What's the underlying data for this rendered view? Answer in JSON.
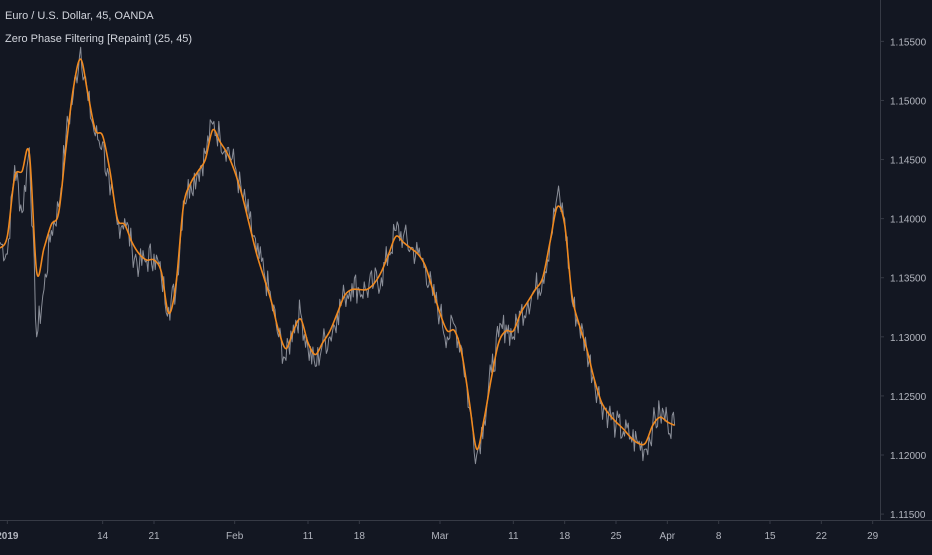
{
  "header": {
    "symbol_line": "Euro / U.S. Dollar, 45, OANDA",
    "indicator_line": "Zero Phase Filtering [Repaint] (25, 45)"
  },
  "colors": {
    "background": "#131722",
    "price": "#8a8e98",
    "filter": "#f0891f",
    "axis_text": "#b2b5be",
    "axis_line": "#363a45"
  },
  "chart_data": {
    "type": "line",
    "x_type": "date",
    "ylim": [
      1.1145,
      1.1585
    ],
    "xlim": [
      "2018-12-31",
      "2019-04-30"
    ],
    "grid": false,
    "y_ticks": [
      1.155,
      1.15,
      1.145,
      1.14,
      1.135,
      1.13,
      1.125,
      1.12,
      1.115
    ],
    "y_tick_labels": [
      "1.15500",
      "1.15000",
      "1.14500",
      "1.14000",
      "1.13500",
      "1.13000",
      "1.12500",
      "1.12000",
      "1.11500"
    ],
    "x_ticks": [
      {
        "date": "2019-01-01",
        "label": "2019",
        "bold": true
      },
      {
        "date": "2019-01-14",
        "label": "14"
      },
      {
        "date": "2019-01-21",
        "label": "21"
      },
      {
        "date": "2019-02-01",
        "label": "Feb"
      },
      {
        "date": "2019-02-11",
        "label": "11"
      },
      {
        "date": "2019-02-18",
        "label": "18"
      },
      {
        "date": "2019-03-01",
        "label": "Mar"
      },
      {
        "date": "2019-03-11",
        "label": "11"
      },
      {
        "date": "2019-03-18",
        "label": "18"
      },
      {
        "date": "2019-03-25",
        "label": "25"
      },
      {
        "date": "2019-04-01",
        "label": "Apr"
      },
      {
        "date": "2019-04-08",
        "label": "8"
      },
      {
        "date": "2019-04-15",
        "label": "15"
      },
      {
        "date": "2019-04-22",
        "label": "22"
      },
      {
        "date": "2019-04-29",
        "label": "29"
      }
    ],
    "series": [
      {
        "name": "Euro / U.S. Dollar",
        "points": [
          [
            "2018-12-31",
            1.138
          ],
          [
            "2019-01-01",
            1.137
          ],
          [
            "2019-01-02",
            1.1445
          ],
          [
            "2019-01-03",
            1.1405
          ],
          [
            "2019-01-04",
            1.146
          ],
          [
            "2019-01-05",
            1.13
          ],
          [
            "2019-01-06",
            1.134
          ],
          [
            "2019-01-07",
            1.139
          ],
          [
            "2019-01-08",
            1.141
          ],
          [
            "2019-01-09",
            1.147
          ],
          [
            "2019-01-10",
            1.1505
          ],
          [
            "2019-01-11",
            1.1545
          ],
          [
            "2019-01-12",
            1.15
          ],
          [
            "2019-01-13",
            1.147
          ],
          [
            "2019-01-14",
            1.1465
          ],
          [
            "2019-01-15",
            1.142
          ],
          [
            "2019-01-16",
            1.1395
          ],
          [
            "2019-01-17",
            1.14
          ],
          [
            "2019-01-18",
            1.1375
          ],
          [
            "2019-01-19",
            1.136
          ],
          [
            "2019-01-20",
            1.1365
          ],
          [
            "2019-01-21",
            1.137
          ],
          [
            "2019-01-22",
            1.135
          ],
          [
            "2019-01-23",
            1.1325
          ],
          [
            "2019-01-24",
            1.134
          ],
          [
            "2019-01-25",
            1.1415
          ],
          [
            "2019-01-26",
            1.143
          ],
          [
            "2019-01-27",
            1.144
          ],
          [
            "2019-01-28",
            1.1455
          ],
          [
            "2019-01-29",
            1.148
          ],
          [
            "2019-01-30",
            1.147
          ],
          [
            "2019-01-31",
            1.146
          ],
          [
            "2019-02-01",
            1.1445
          ],
          [
            "2019-02-02",
            1.142
          ],
          [
            "2019-02-03",
            1.14
          ],
          [
            "2019-02-04",
            1.137
          ],
          [
            "2019-02-05",
            1.1355
          ],
          [
            "2019-02-06",
            1.133
          ],
          [
            "2019-02-07",
            1.13
          ],
          [
            "2019-02-08",
            1.128
          ],
          [
            "2019-02-09",
            1.131
          ],
          [
            "2019-02-10",
            1.132
          ],
          [
            "2019-02-11",
            1.129
          ],
          [
            "2019-02-12",
            1.1275
          ],
          [
            "2019-02-13",
            1.1295
          ],
          [
            "2019-02-14",
            1.13
          ],
          [
            "2019-02-15",
            1.132
          ],
          [
            "2019-02-16",
            1.1335
          ],
          [
            "2019-02-17",
            1.1345
          ],
          [
            "2019-02-18",
            1.134
          ],
          [
            "2019-02-19",
            1.134
          ],
          [
            "2019-02-20",
            1.1345
          ],
          [
            "2019-02-21",
            1.135
          ],
          [
            "2019-02-22",
            1.137
          ],
          [
            "2019-02-23",
            1.139
          ],
          [
            "2019-02-24",
            1.1385
          ],
          [
            "2019-02-25",
            1.1375
          ],
          [
            "2019-02-26",
            1.137
          ],
          [
            "2019-02-27",
            1.136
          ],
          [
            "2019-02-28",
            1.1335
          ],
          [
            "2019-03-01",
            1.132
          ],
          [
            "2019-03-02",
            1.13
          ],
          [
            "2019-03-03",
            1.131
          ],
          [
            "2019-03-04",
            1.129
          ],
          [
            "2019-03-05",
            1.124
          ],
          [
            "2019-03-06",
            1.12
          ],
          [
            "2019-03-07",
            1.123
          ],
          [
            "2019-03-08",
            1.127
          ],
          [
            "2019-03-09",
            1.13
          ],
          [
            "2019-03-10",
            1.131
          ],
          [
            "2019-03-11",
            1.13
          ],
          [
            "2019-03-12",
            1.132
          ],
          [
            "2019-03-13",
            1.133
          ],
          [
            "2019-03-14",
            1.134
          ],
          [
            "2019-03-15",
            1.135
          ],
          [
            "2019-03-16",
            1.138
          ],
          [
            "2019-03-17",
            1.142
          ],
          [
            "2019-03-18",
            1.14
          ],
          [
            "2019-03-19",
            1.133
          ],
          [
            "2019-03-20",
            1.131
          ],
          [
            "2019-03-21",
            1.129
          ],
          [
            "2019-03-22",
            1.1265
          ],
          [
            "2019-03-23",
            1.1245
          ],
          [
            "2019-03-24",
            1.1235
          ],
          [
            "2019-03-25",
            1.1225
          ],
          [
            "2019-03-26",
            1.122
          ],
          [
            "2019-03-27",
            1.1215
          ],
          [
            "2019-03-28",
            1.121
          ],
          [
            "2019-03-29",
            1.1205
          ],
          [
            "2019-03-30",
            1.1225
          ],
          [
            "2019-03-31",
            1.1235
          ],
          [
            "2019-04-01",
            1.123
          ],
          [
            "2019-04-02",
            1.1225
          ]
        ]
      },
      {
        "name": "Zero Phase Filtering [Repaint] (25, 45)",
        "points": [
          [
            "2018-12-31",
            1.1375
          ],
          [
            "2019-01-01",
            1.1385
          ],
          [
            "2019-01-02",
            1.1435
          ],
          [
            "2019-01-03",
            1.144
          ],
          [
            "2019-01-04",
            1.1455
          ],
          [
            "2019-01-05",
            1.1355
          ],
          [
            "2019-01-06",
            1.1375
          ],
          [
            "2019-01-07",
            1.1395
          ],
          [
            "2019-01-08",
            1.1405
          ],
          [
            "2019-01-09",
            1.146
          ],
          [
            "2019-01-10",
            1.151
          ],
          [
            "2019-01-11",
            1.1535
          ],
          [
            "2019-01-12",
            1.1505
          ],
          [
            "2019-01-13",
            1.1475
          ],
          [
            "2019-01-14",
            1.147
          ],
          [
            "2019-01-15",
            1.144
          ],
          [
            "2019-01-16",
            1.14
          ],
          [
            "2019-01-17",
            1.1395
          ],
          [
            "2019-01-18",
            1.138
          ],
          [
            "2019-01-19",
            1.137
          ],
          [
            "2019-01-20",
            1.1365
          ],
          [
            "2019-01-21",
            1.1365
          ],
          [
            "2019-01-22",
            1.1355
          ],
          [
            "2019-01-23",
            1.132
          ],
          [
            "2019-01-24",
            1.1345
          ],
          [
            "2019-01-25",
            1.141
          ],
          [
            "2019-01-26",
            1.143
          ],
          [
            "2019-01-27",
            1.144
          ],
          [
            "2019-01-28",
            1.145
          ],
          [
            "2019-01-29",
            1.1475
          ],
          [
            "2019-01-30",
            1.1465
          ],
          [
            "2019-01-31",
            1.1455
          ],
          [
            "2019-02-01",
            1.144
          ],
          [
            "2019-02-02",
            1.142
          ],
          [
            "2019-02-03",
            1.1395
          ],
          [
            "2019-02-04",
            1.137
          ],
          [
            "2019-02-05",
            1.135
          ],
          [
            "2019-02-06",
            1.133
          ],
          [
            "2019-02-07",
            1.1305
          ],
          [
            "2019-02-08",
            1.129
          ],
          [
            "2019-02-09",
            1.1305
          ],
          [
            "2019-02-10",
            1.1315
          ],
          [
            "2019-02-11",
            1.1295
          ],
          [
            "2019-02-12",
            1.1285
          ],
          [
            "2019-02-13",
            1.1295
          ],
          [
            "2019-02-14",
            1.1305
          ],
          [
            "2019-02-15",
            1.132
          ],
          [
            "2019-02-16",
            1.1335
          ],
          [
            "2019-02-17",
            1.134
          ],
          [
            "2019-02-18",
            1.134
          ],
          [
            "2019-02-19",
            1.134
          ],
          [
            "2019-02-20",
            1.1345
          ],
          [
            "2019-02-21",
            1.1355
          ],
          [
            "2019-02-22",
            1.137
          ],
          [
            "2019-02-23",
            1.1385
          ],
          [
            "2019-02-24",
            1.138
          ],
          [
            "2019-02-25",
            1.1375
          ],
          [
            "2019-02-26",
            1.137
          ],
          [
            "2019-02-27",
            1.136
          ],
          [
            "2019-02-28",
            1.134
          ],
          [
            "2019-03-01",
            1.132
          ],
          [
            "2019-03-02",
            1.1305
          ],
          [
            "2019-03-03",
            1.1305
          ],
          [
            "2019-03-04",
            1.1285
          ],
          [
            "2019-03-05",
            1.1245
          ],
          [
            "2019-03-06",
            1.1205
          ],
          [
            "2019-03-07",
            1.123
          ],
          [
            "2019-03-08",
            1.1265
          ],
          [
            "2019-03-09",
            1.1295
          ],
          [
            "2019-03-10",
            1.1305
          ],
          [
            "2019-03-11",
            1.1305
          ],
          [
            "2019-03-12",
            1.132
          ],
          [
            "2019-03-13",
            1.133
          ],
          [
            "2019-03-14",
            1.134
          ],
          [
            "2019-03-15",
            1.135
          ],
          [
            "2019-03-16",
            1.138
          ],
          [
            "2019-03-17",
            1.141
          ],
          [
            "2019-03-18",
            1.1395
          ],
          [
            "2019-03-19",
            1.1335
          ],
          [
            "2019-03-20",
            1.131
          ],
          [
            "2019-03-21",
            1.129
          ],
          [
            "2019-03-22",
            1.1265
          ],
          [
            "2019-03-23",
            1.1245
          ],
          [
            "2019-03-24",
            1.1235
          ],
          [
            "2019-03-25",
            1.1228
          ],
          [
            "2019-03-26",
            1.1222
          ],
          [
            "2019-03-27",
            1.1215
          ],
          [
            "2019-03-28",
            1.121
          ],
          [
            "2019-03-29",
            1.121
          ],
          [
            "2019-03-30",
            1.1225
          ],
          [
            "2019-03-31",
            1.1232
          ],
          [
            "2019-04-01",
            1.1228
          ],
          [
            "2019-04-02",
            1.1225
          ]
        ]
      }
    ]
  }
}
